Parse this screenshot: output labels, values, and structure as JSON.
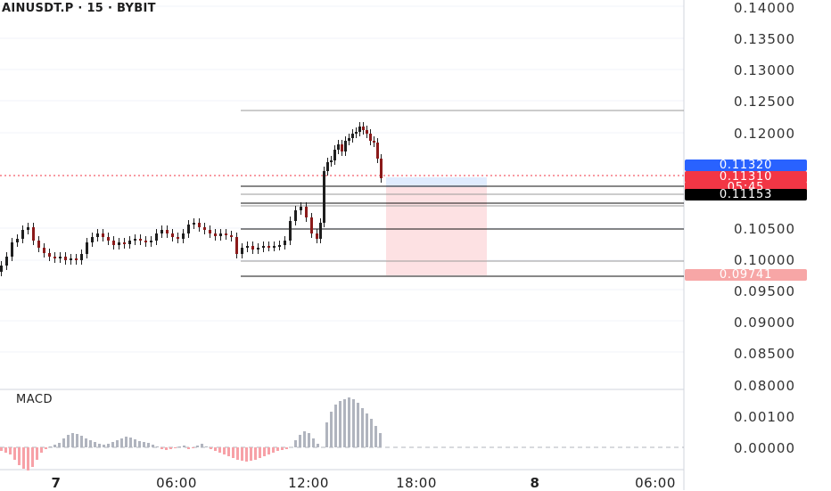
{
  "header": {
    "symbol": "AINUSDT.P · 15 · BYBIT"
  },
  "price_axis": {
    "labels": [
      "0.14000",
      "0.13500",
      "0.13000",
      "0.12500",
      "0.12000",
      "0.10500",
      "0.10000",
      "0.09500",
      "0.09000",
      "0.08500",
      "0.08000"
    ]
  },
  "price_tags": {
    "last": "0.11320",
    "current": "0.11310",
    "countdown": "05:45",
    "level": "0.11153",
    "target": "0.09741"
  },
  "macd": {
    "title": "MACD",
    "axis_labels": [
      "0.00100",
      "0.00000"
    ]
  },
  "time_axis": {
    "labels": [
      "7",
      "06:00",
      "12:00",
      "18:00",
      "8",
      "06:00"
    ]
  },
  "colors": {
    "up": "#1e1e1e",
    "down": "#8b1a1a",
    "hist_pos": "#b0b4be",
    "hist_neg": "#f7a1a7",
    "zone": "#fde1e3",
    "zone_top": "#e0ecfe",
    "blue_tag": "#2962ff",
    "red_tag": "#f23645"
  }
}
